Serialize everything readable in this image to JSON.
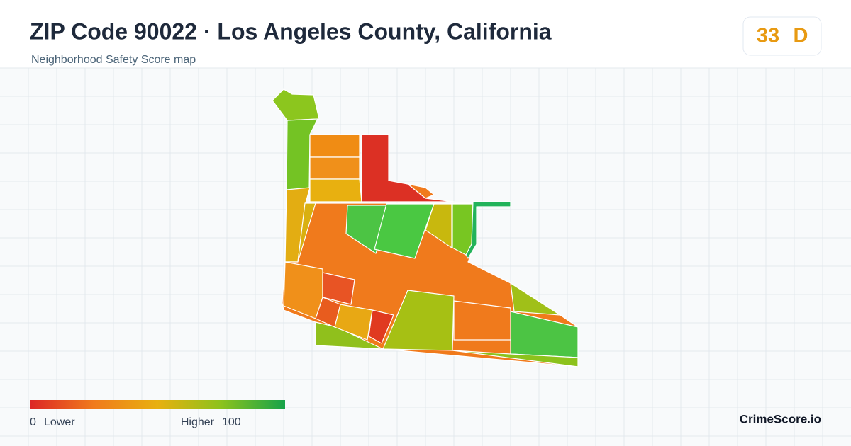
{
  "header": {
    "title": "ZIP Code 90022 · Los Angeles County, California",
    "subtitle": "Neighborhood Safety Score map"
  },
  "score": {
    "value": 33,
    "grade": "D"
  },
  "legend": {
    "min": 0,
    "min_label": "Lower",
    "max_label": "Higher",
    "max": 100
  },
  "brand": "CrimeScore.io"
}
